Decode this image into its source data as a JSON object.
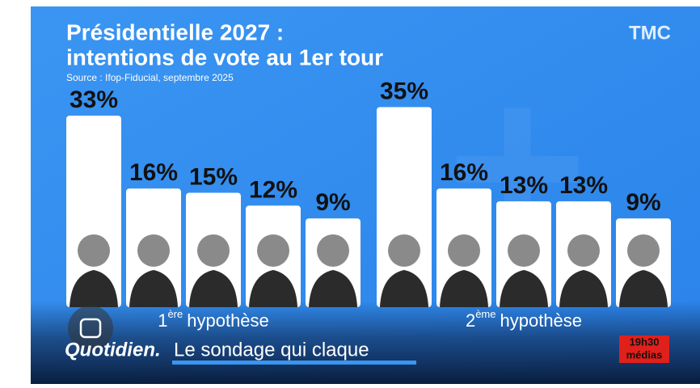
{
  "header": {
    "title_line1": "Présidentielle 2027 :",
    "title_line2": "intentions de vote au 1er tour",
    "source": "Source : Ifop-Fiducial, septembre 2025",
    "logo": "TMC"
  },
  "chart_data": [
    {
      "type": "bar",
      "caption": {
        "number": "1",
        "suffix": "ère",
        "text": "hypothèse"
      },
      "categories": [
        null,
        null,
        null,
        null,
        null
      ],
      "values": [
        33,
        16,
        15,
        12,
        9
      ],
      "value_labels": [
        "33%",
        "16%",
        "15%",
        "12%",
        "9%"
      ],
      "color": "#ffffff"
    },
    {
      "type": "bar",
      "caption": {
        "number": "2",
        "suffix": "ème",
        "text": "hypothèse"
      },
      "categories": [
        null,
        null,
        null,
        null,
        null
      ],
      "values": [
        35,
        16,
        13,
        13,
        9
      ],
      "value_labels": [
        "35%",
        "16%",
        "13%",
        "13%",
        "9%"
      ],
      "color": "#ffffff"
    }
  ],
  "footer": {
    "show": "Quotidien.",
    "segment": "Le sondage qui claque",
    "badge_line1": "19h30",
    "badge_line2": "médias"
  }
}
